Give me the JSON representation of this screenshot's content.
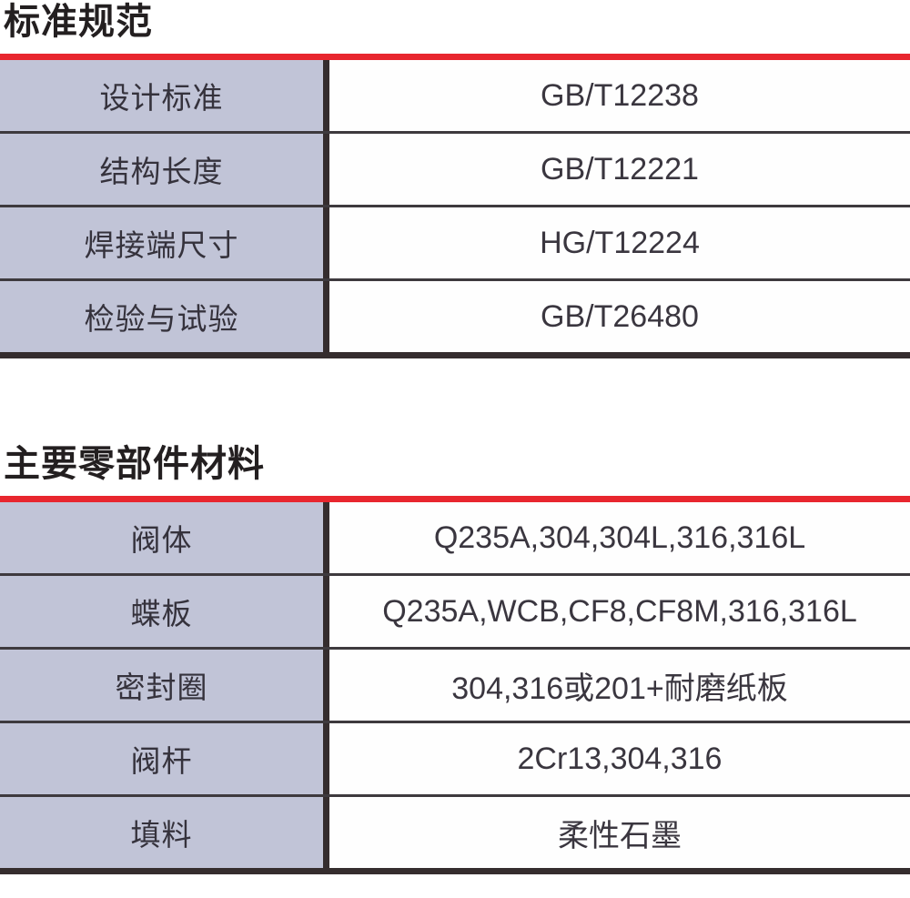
{
  "colors": {
    "accent_red": "#e8262e",
    "label_cell_background": "#c1c4d7",
    "dark_border": "#352d2e",
    "row_divider": "#3e3a3e",
    "title_text": "#231f20",
    "cell_text": "#35323c"
  },
  "sections": [
    {
      "title": "标准规范",
      "rows": [
        {
          "label": "设计标准",
          "value": "GB/T12238"
        },
        {
          "label": "结构长度",
          "value": "GB/T12221"
        },
        {
          "label": "焊接端尺寸",
          "value": "HG/T12224"
        },
        {
          "label": "检验与试验",
          "value": "GB/T26480"
        }
      ]
    },
    {
      "title": "主要零部件材料",
      "rows": [
        {
          "label": "阀体",
          "value": "Q235A,304,304L,316,316L"
        },
        {
          "label": "蝶板",
          "value": "Q235A,WCB,CF8,CF8M,316,316L"
        },
        {
          "label": "密封圈",
          "value": "304,316或201+耐磨纸板"
        },
        {
          "label": "阀杆",
          "value": "2Cr13,304,316"
        },
        {
          "label": "填料",
          "value": "柔性石墨"
        }
      ]
    }
  ]
}
